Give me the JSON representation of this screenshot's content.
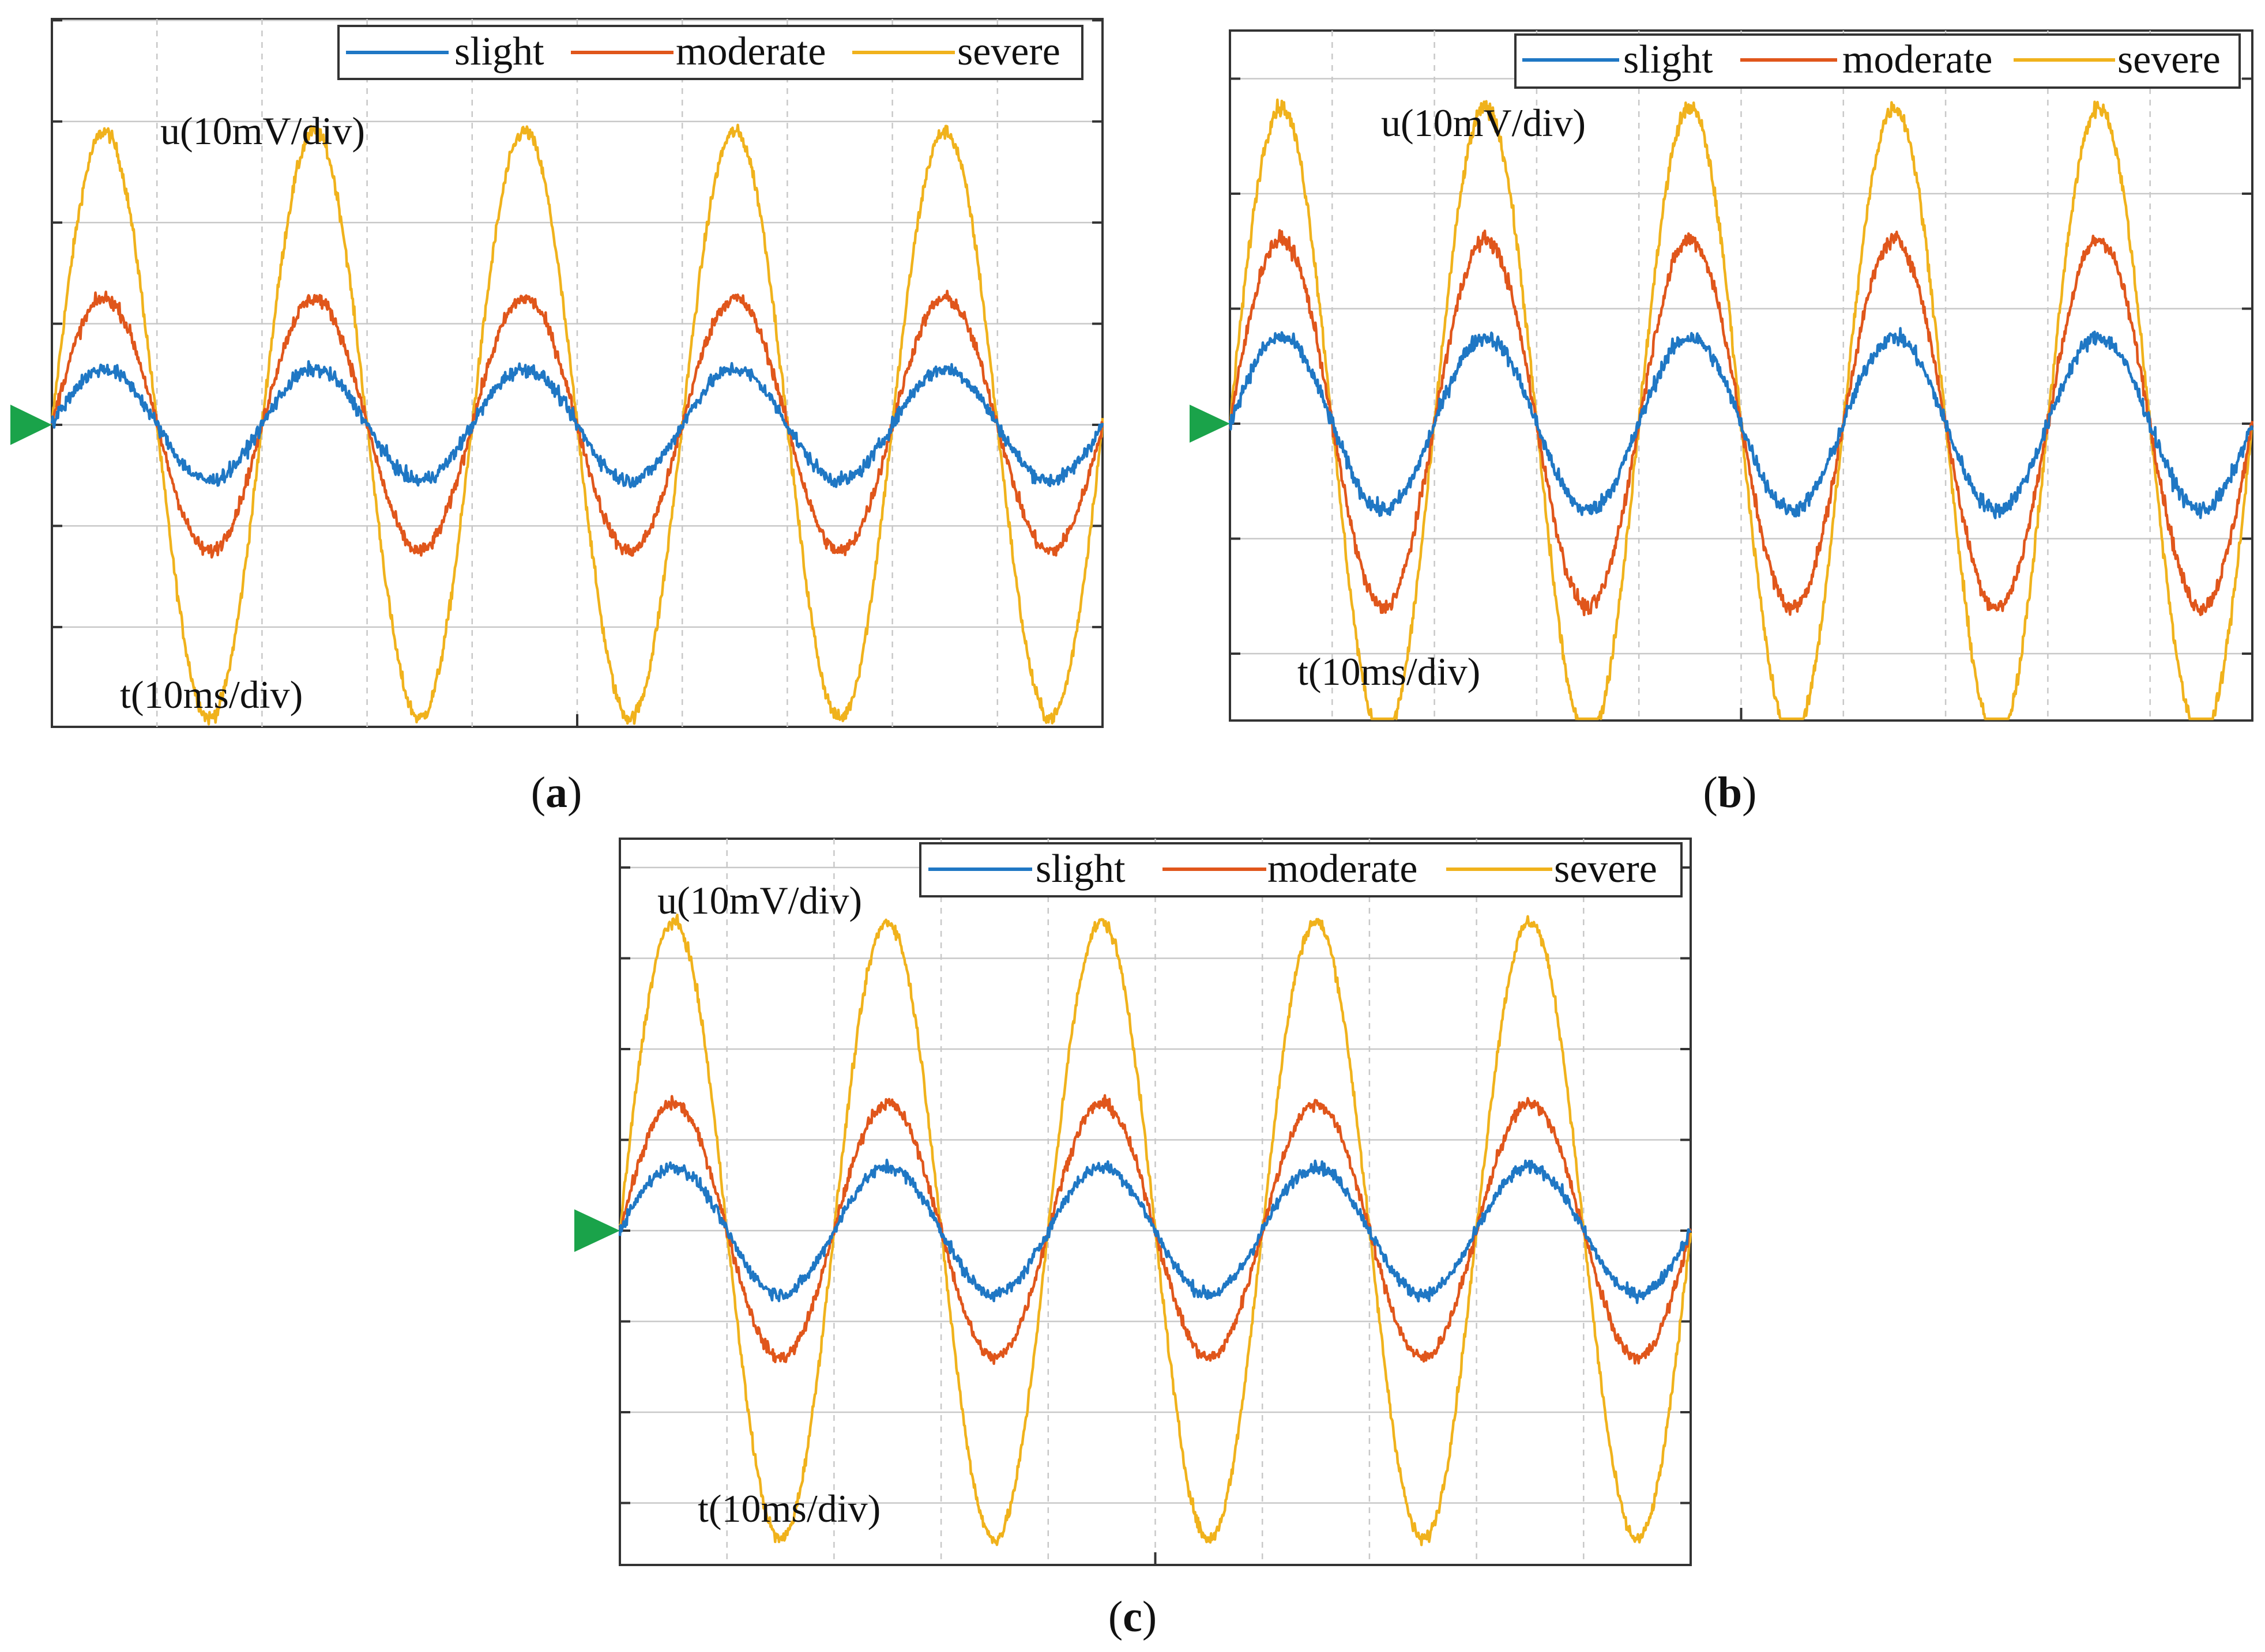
{
  "figure": {
    "panels": [
      {
        "label": "(a)",
        "label_letter": "a"
      },
      {
        "label": "(b)",
        "label_letter": "b"
      },
      {
        "label": "(c)",
        "label_letter": "c"
      }
    ]
  },
  "colors": {
    "slight": "#1f77c4",
    "moderate": "#e0561b",
    "severe": "#f0b21c",
    "trigger_marker": "#1aa34a",
    "grid": "#c8c8c8",
    "frame": "#333333"
  },
  "chart_data": [
    {
      "type": "line",
      "panel": "a",
      "ylabel": "u(10mV/div)",
      "xlabel": "t(10ms/div)",
      "legend": {
        "placement": "top-right",
        "entries": [
          "slight",
          "moderate",
          "severe"
        ]
      },
      "grid": true,
      "x_divisions": 10,
      "y_divisions": 7,
      "x_range_ms": [
        0,
        100
      ],
      "y_range_div": [
        -3,
        4
      ],
      "period_ms": 20,
      "series": [
        {
          "name": "slight",
          "amplitude_div": 0.55,
          "noise_div": 0.12
        },
        {
          "name": "moderate",
          "amplitude_div": 1.25,
          "noise_div": 0.12
        },
        {
          "name": "severe",
          "amplitude_div": 2.9,
          "noise_div": 0.12
        }
      ]
    },
    {
      "type": "line",
      "panel": "b",
      "ylabel": "u(10mV/div)",
      "xlabel": "t(10ms/div)",
      "legend": {
        "placement": "top-right",
        "entries": [
          "slight",
          "moderate",
          "severe"
        ]
      },
      "grid": true,
      "x_divisions": 10,
      "y_divisions": 6,
      "x_range_ms": [
        0,
        100
      ],
      "y_range_div": [
        -3,
        3
      ],
      "period_ms": 20,
      "series": [
        {
          "name": "slight",
          "amplitude_div": 0.75,
          "noise_div": 0.12
        },
        {
          "name": "moderate",
          "amplitude_div": 1.6,
          "noise_div": 0.12
        },
        {
          "name": "severe",
          "amplitude_div": 2.75,
          "noise_div": 0.12
        }
      ]
    },
    {
      "type": "line",
      "panel": "c",
      "ylabel": "u(10mV/div)",
      "xlabel": "t(10ms/div)",
      "legend": {
        "placement": "top-right",
        "entries": [
          "slight",
          "moderate",
          "severe"
        ]
      },
      "grid": true,
      "x_divisions": 10,
      "y_divisions": 8,
      "x_range_ms": [
        0,
        100
      ],
      "y_range_div": [
        -4,
        4
      ],
      "period_ms": 20,
      "series": [
        {
          "name": "slight",
          "amplitude_div": 0.7,
          "noise_div": 0.12
        },
        {
          "name": "moderate",
          "amplitude_div": 1.4,
          "noise_div": 0.12
        },
        {
          "name": "severe",
          "amplitude_div": 3.4,
          "noise_div": 0.12
        }
      ]
    }
  ]
}
